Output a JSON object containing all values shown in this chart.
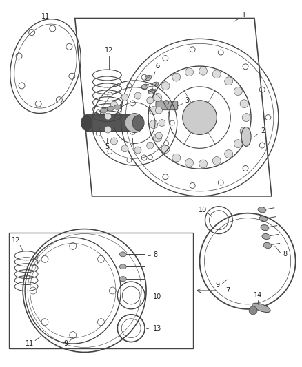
{
  "bg_color": "#ffffff",
  "fig_width": 4.38,
  "fig_height": 5.33,
  "dpi": 100,
  "oc": "#444444",
  "lc": "#444444",
  "label_color": "#222222",
  "label_fs": 7.0
}
